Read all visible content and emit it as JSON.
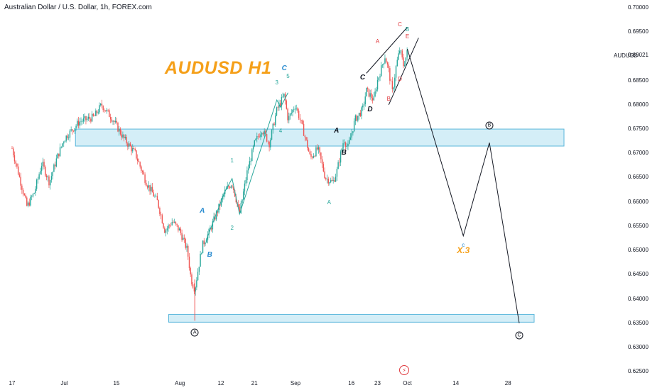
{
  "header": {
    "title": "Australian Dollar / U.S. Dollar, 1h, FOREX.com"
  },
  "ticker": "AUDUSD",
  "watermark_title": "AUDUSD H1",
  "flash_icon": "lightning-icon",
  "colors": {
    "up": "#26a69a",
    "down": "#ef5350",
    "zone_fill": "#d4eef7",
    "zone_border": "#5bb7db",
    "title": "#f5a01a",
    "label_red": "#e0393e",
    "label_teal": "#26a69a",
    "label_blue": "#2a8cd0"
  },
  "chart_data": {
    "type": "candlestick",
    "symbol": "AUDUSD",
    "timeframe": "1h",
    "y_ticks": [
      "0.70000",
      "0.69500",
      "0.69021",
      "0.68500",
      "0.68000",
      "0.67500",
      "0.67000",
      "0.66500",
      "0.66000",
      "0.65500",
      "0.65000",
      "0.64500",
      "0.64000",
      "0.63500",
      "0.63000",
      "0.62500"
    ],
    "ylim": [
      0.625,
      0.7
    ],
    "x_ticks": [
      {
        "label": "17",
        "d": 0
      },
      {
        "label": "Jul",
        "d": 14
      },
      {
        "label": "15",
        "d": 28
      },
      {
        "label": "Aug",
        "d": 45
      },
      {
        "label": "12",
        "d": 56
      },
      {
        "label": "21",
        "d": 65
      },
      {
        "label": "Sep",
        "d": 76
      },
      {
        "label": "16",
        "d": 91
      },
      {
        "label": "23",
        "d": 98
      },
      {
        "label": "Oct",
        "d": 106
      },
      {
        "label": "14",
        "d": 119
      },
      {
        "label": "28",
        "d": 133
      }
    ],
    "price_path": [
      {
        "d": 0,
        "p": 0.671
      },
      {
        "d": 4,
        "p": 0.659
      },
      {
        "d": 6,
        "p": 0.662
      },
      {
        "d": 8,
        "p": 0.668
      },
      {
        "d": 10,
        "p": 0.664
      },
      {
        "d": 12,
        "p": 0.669
      },
      {
        "d": 14,
        "p": 0.673
      },
      {
        "d": 18,
        "p": 0.6765
      },
      {
        "d": 22,
        "p": 0.6775
      },
      {
        "d": 24,
        "p": 0.68
      },
      {
        "d": 27,
        "p": 0.677
      },
      {
        "d": 30,
        "p": 0.673
      },
      {
        "d": 33,
        "p": 0.67
      },
      {
        "d": 36,
        "p": 0.664
      },
      {
        "d": 39,
        "p": 0.66
      },
      {
        "d": 41,
        "p": 0.654
      },
      {
        "d": 43,
        "p": 0.656
      },
      {
        "d": 45,
        "p": 0.654
      },
      {
        "d": 47,
        "p": 0.65
      },
      {
        "d": 48,
        "p": 0.644
      },
      {
        "d": 49,
        "p": 0.642
      },
      {
        "d": 51,
        "p": 0.651
      },
      {
        "d": 53,
        "p": 0.654
      },
      {
        "d": 55,
        "p": 0.658
      },
      {
        "d": 57,
        "p": 0.662
      },
      {
        "d": 59,
        "p": 0.664
      },
      {
        "d": 61,
        "p": 0.6575
      },
      {
        "d": 63,
        "p": 0.666
      },
      {
        "d": 65,
        "p": 0.672
      },
      {
        "d": 67,
        "p": 0.675
      },
      {
        "d": 69,
        "p": 0.672
      },
      {
        "d": 71,
        "p": 0.679
      },
      {
        "d": 73,
        "p": 0.682
      },
      {
        "d": 74,
        "p": 0.677
      },
      {
        "d": 76,
        "p": 0.68
      },
      {
        "d": 78,
        "p": 0.675
      },
      {
        "d": 80,
        "p": 0.669
      },
      {
        "d": 82,
        "p": 0.671
      },
      {
        "d": 84,
        "p": 0.665
      },
      {
        "d": 86,
        "p": 0.664
      },
      {
        "d": 87,
        "p": 0.666
      },
      {
        "d": 89,
        "p": 0.673
      },
      {
        "d": 90,
        "p": 0.671
      },
      {
        "d": 92,
        "p": 0.677
      },
      {
        "d": 94,
        "p": 0.679
      },
      {
        "d": 95,
        "p": 0.683
      },
      {
        "d": 97,
        "p": 0.681
      },
      {
        "d": 98,
        "p": 0.685
      },
      {
        "d": 100,
        "p": 0.69
      },
      {
        "d": 101,
        "p": 0.687
      },
      {
        "d": 102,
        "p": 0.6825
      },
      {
        "d": 103,
        "p": 0.688
      },
      {
        "d": 104,
        "p": 0.6915
      },
      {
        "d": 105,
        "p": 0.688
      },
      {
        "d": 106,
        "p": 0.691
      }
    ],
    "lows_spike": {
      "d": 49,
      "p": 0.6355
    },
    "zones": [
      {
        "d0": 17,
        "d1": 148,
        "p0": 0.6715,
        "p1": 0.675
      },
      {
        "d0": 42,
        "d1": 140,
        "p0": 0.6352,
        "p1": 0.6368
      }
    ],
    "projection": [
      {
        "d": 106,
        "p": 0.6915
      },
      {
        "d": 121,
        "p": 0.653
      },
      {
        "d": 128,
        "p": 0.6722
      },
      {
        "d": 136,
        "p": 0.635
      }
    ],
    "channel_lines": [
      {
        "d0": 95,
        "p0": 0.6865,
        "d1": 106,
        "p1": 0.696
      },
      {
        "d0": 101,
        "p0": 0.68,
        "d1": 109,
        "p1": 0.6938
      }
    ],
    "wave_line": [
      {
        "d": 52,
        "p": 0.652
      },
      {
        "d": 57,
        "p": 0.662
      },
      {
        "d": 59,
        "p": 0.6648
      },
      {
        "d": 61,
        "p": 0.6575
      },
      {
        "d": 71,
        "p": 0.681
      },
      {
        "d": 72,
        "p": 0.6795
      },
      {
        "d": 74,
        "p": 0.6825
      }
    ],
    "annotations": [
      {
        "text": "A",
        "d": 51,
        "p": 0.658,
        "style": "big",
        "color": "label_blue"
      },
      {
        "text": "B",
        "d": 53,
        "p": 0.649,
        "style": "big",
        "color": "label_blue"
      },
      {
        "text": "1",
        "d": 59,
        "p": 0.6685,
        "style": "small",
        "color": "label_teal"
      },
      {
        "text": "2",
        "d": 59,
        "p": 0.6545,
        "style": "small",
        "color": "label_teal"
      },
      {
        "text": "3",
        "d": 71,
        "p": 0.6845,
        "style": "small",
        "color": "label_teal"
      },
      {
        "text": "4",
        "d": 72,
        "p": 0.6745,
        "style": "small",
        "color": "label_teal"
      },
      {
        "text": "5",
        "d": 74,
        "p": 0.6858,
        "style": "small",
        "color": "label_teal"
      },
      {
        "text": "C",
        "d": 73,
        "p": 0.6875,
        "style": "big",
        "color": "label_blue"
      },
      {
        "text": "A",
        "d": 87,
        "p": 0.6745,
        "style": "big",
        "color": "text"
      },
      {
        "text": "B",
        "d": 89,
        "p": 0.67,
        "style": "big",
        "color": "text"
      },
      {
        "text": "A",
        "d": 85,
        "p": 0.6598,
        "style": "small",
        "color": "label_teal"
      },
      {
        "text": "C",
        "d": 94,
        "p": 0.6855,
        "style": "big",
        "color": "text"
      },
      {
        "text": "D",
        "d": 96,
        "p": 0.679,
        "style": "big",
        "color": "text"
      },
      {
        "text": "A",
        "d": 98,
        "p": 0.693,
        "style": "small",
        "color": "label_red"
      },
      {
        "text": "B",
        "d": 101,
        "p": 0.6812,
        "style": "small",
        "color": "label_red"
      },
      {
        "text": "C",
        "d": 104,
        "p": 0.6965,
        "style": "small",
        "color": "label_red"
      },
      {
        "text": "D",
        "d": 104,
        "p": 0.6852,
        "style": "small",
        "color": "label_red"
      },
      {
        "text": "B",
        "d": 106,
        "p": 0.6955,
        "style": "small",
        "color": "label_teal"
      },
      {
        "text": "E",
        "d": 106,
        "p": 0.694,
        "style": "small",
        "color": "label_red"
      },
      {
        "text": "c",
        "d": 121,
        "p": 0.651,
        "style": "small",
        "color": "label_blue"
      },
      {
        "text": "X.3",
        "d": 121,
        "p": 0.65,
        "style": "xl",
        "color": "title"
      }
    ],
    "circled": [
      {
        "text": "A",
        "d": 49,
        "p": 0.633
      },
      {
        "text": "B",
        "d": 128,
        "p": 0.6758
      },
      {
        "text": "C",
        "d": 136,
        "p": 0.6325
      }
    ]
  }
}
